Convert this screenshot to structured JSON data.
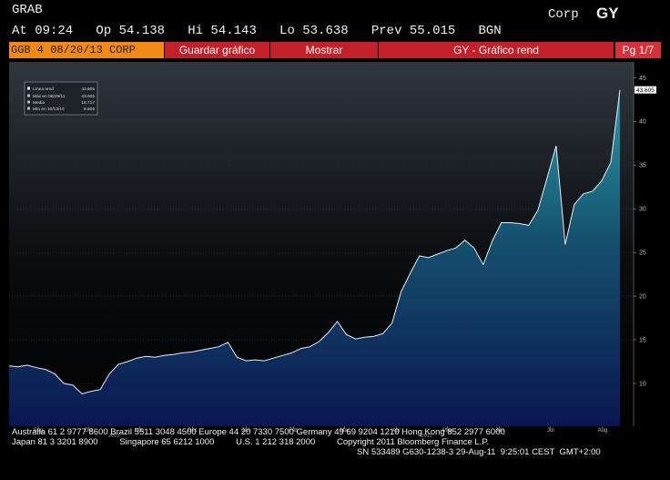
{
  "header": {
    "title": "GRAB",
    "source": "Corp",
    "ticker": "GY",
    "quote": "At 09:24   Op 54.138   Hi 54.143   Lo 53.638   Prev 55.015   BGN"
  },
  "toolbar": [
    "GGB 4 08/20/13 CORP",
    "Guardar gráfico",
    "Mostrar",
    "GY - Gráfico rend",
    "Pg 1/7"
  ],
  "chart_data": {
    "type": "line",
    "series": [
      {
        "name": "Línea rend",
        "color": "#e8eef5",
        "values": [
          12.0,
          11.9,
          12.1,
          11.8,
          11.6,
          11.1,
          10.0,
          9.8,
          8.8,
          9.1,
          9.3,
          11.1,
          12.2,
          12.5,
          12.9,
          13.1,
          13.0,
          13.2,
          13.3,
          13.5,
          13.6,
          13.8,
          14.0,
          14.2,
          14.7,
          13.0,
          12.6,
          12.7,
          12.6,
          12.9,
          13.2,
          13.5,
          14.0,
          14.2,
          14.8,
          15.8,
          17.1,
          15.6,
          15.1,
          15.3,
          15.4,
          15.7,
          16.9,
          20.5,
          22.6,
          24.6,
          24.4,
          24.8,
          25.2,
          25.5,
          26.4,
          25.5,
          23.6,
          26.3,
          28.4,
          28.4,
          28.3,
          28.1,
          29.8,
          33.5,
          37.2,
          25.9,
          30.5,
          31.7,
          32.0,
          33.2,
          35.3,
          43.6
        ]
      }
    ],
    "legend_stats": [
      {
        "label": "Máx en 08/29/11",
        "value": 43.605
      },
      {
        "label": "Media",
        "value": 18.717
      },
      {
        "label": "Mín en 10/13/10",
        "value": 8.609
      }
    ],
    "last_value": 43.605,
    "line_value": 43.605,
    "xlim": [
      0,
      68.5
    ],
    "xticks": [
      {
        "value": 3.2,
        "label": "Sep"
      },
      {
        "value": 8.7,
        "label": "Oct"
      },
      {
        "value": 14.3,
        "label": "Nov"
      },
      {
        "value": 20.1,
        "label": "Dec"
      },
      {
        "value": 26,
        "label": "Jan"
      },
      {
        "value": 31.2,
        "label": "Feb"
      },
      {
        "value": 36.8,
        "label": "Mar"
      },
      {
        "value": 42.5,
        "label": "Apr"
      },
      {
        "value": 48.1,
        "label": "May"
      },
      {
        "value": 53.8,
        "label": "Jun"
      },
      {
        "value": 59.4,
        "label": "Jul"
      },
      {
        "value": 65.1,
        "label": "Aug"
      }
    ],
    "years": [
      {
        "value": 11.5,
        "label": "2010"
      },
      {
        "value": 45.8,
        "label": "2011"
      }
    ],
    "ylim": [
      5.1,
      46.8
    ],
    "yticks": [
      10,
      15,
      20,
      25,
      30,
      35,
      40,
      45
    ]
  },
  "footer": [
    "Australia 61 2 9777 8600 Brazil 5511 3048 4500 Europe 44 20 7330 7500 Germany 49 69 9204 1210 Hong Kong 852 2977 6000",
    "Japan 81 3 3201 8900         Singapore 65 6212 1000         U.S. 1 212 318 2000         Copyright 2011 Bloomberg Finance L.P.",
    "SN 533489 G630-1238-3 29-Aug-11  9:25:01 CEST  GMT+2:00"
  ]
}
